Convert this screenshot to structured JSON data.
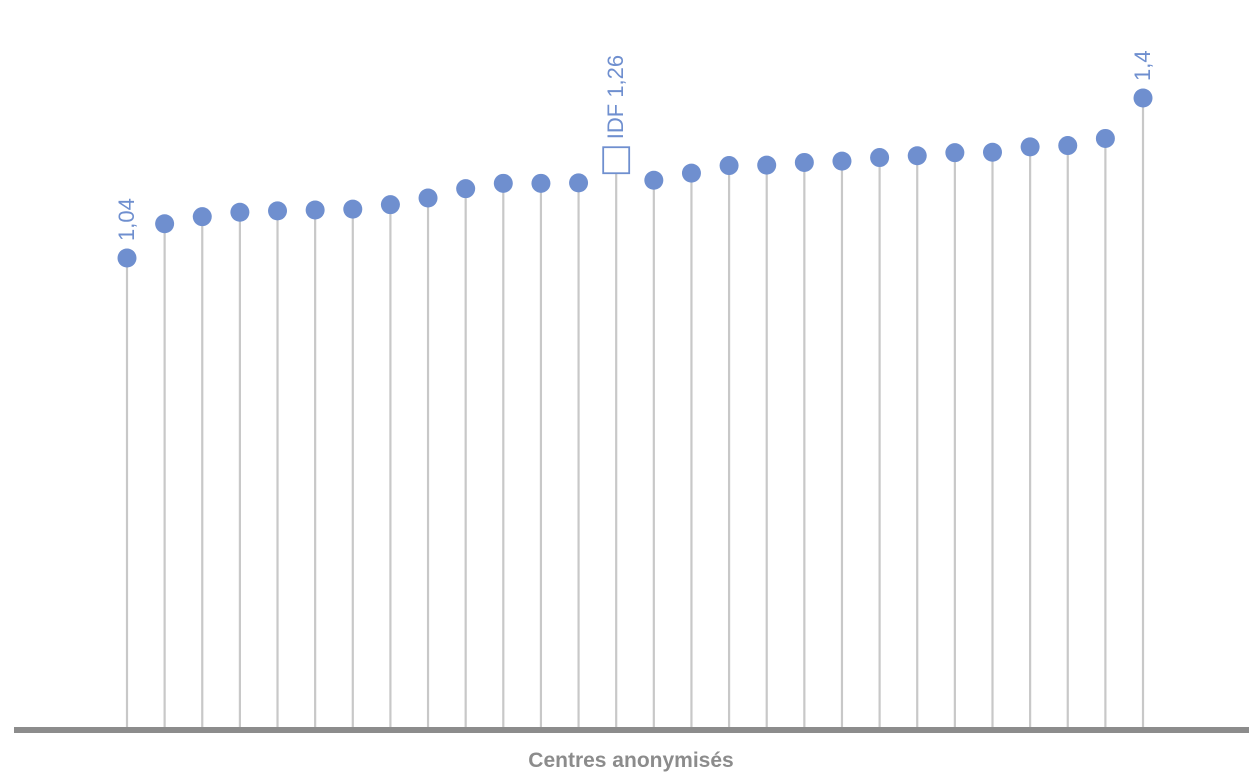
{
  "chart_data": {
    "type": "lollipop",
    "xlabel": "Centres anonymisés",
    "ylabel": "",
    "ylim": [
      0.7,
      1.45
    ],
    "grid": false,
    "legend": "none",
    "colors": {
      "marker": "#6f8fcf",
      "stem": "#c8c8c8",
      "baseline": "#8c8c8c",
      "xlabel": "#8c8c8c"
    },
    "points": [
      {
        "value": 1.04,
        "label": "1,04"
      },
      {
        "value": 1.117
      },
      {
        "value": 1.133
      },
      {
        "value": 1.143
      },
      {
        "value": 1.146
      },
      {
        "value": 1.148
      },
      {
        "value": 1.15
      },
      {
        "value": 1.16
      },
      {
        "value": 1.175
      },
      {
        "value": 1.196
      },
      {
        "value": 1.208
      },
      {
        "value": 1.208
      },
      {
        "value": 1.209
      },
      {
        "value": 1.26,
        "label": "IDF 1,26",
        "marker": "square"
      },
      {
        "value": 1.215
      },
      {
        "value": 1.231
      },
      {
        "value": 1.248
      },
      {
        "value": 1.249
      },
      {
        "value": 1.255
      },
      {
        "value": 1.258
      },
      {
        "value": 1.266
      },
      {
        "value": 1.27
      },
      {
        "value": 1.277
      },
      {
        "value": 1.278
      },
      {
        "value": 1.29
      },
      {
        "value": 1.293
      },
      {
        "value": 1.309
      },
      {
        "value": 1.4,
        "label": "1,4"
      }
    ]
  }
}
